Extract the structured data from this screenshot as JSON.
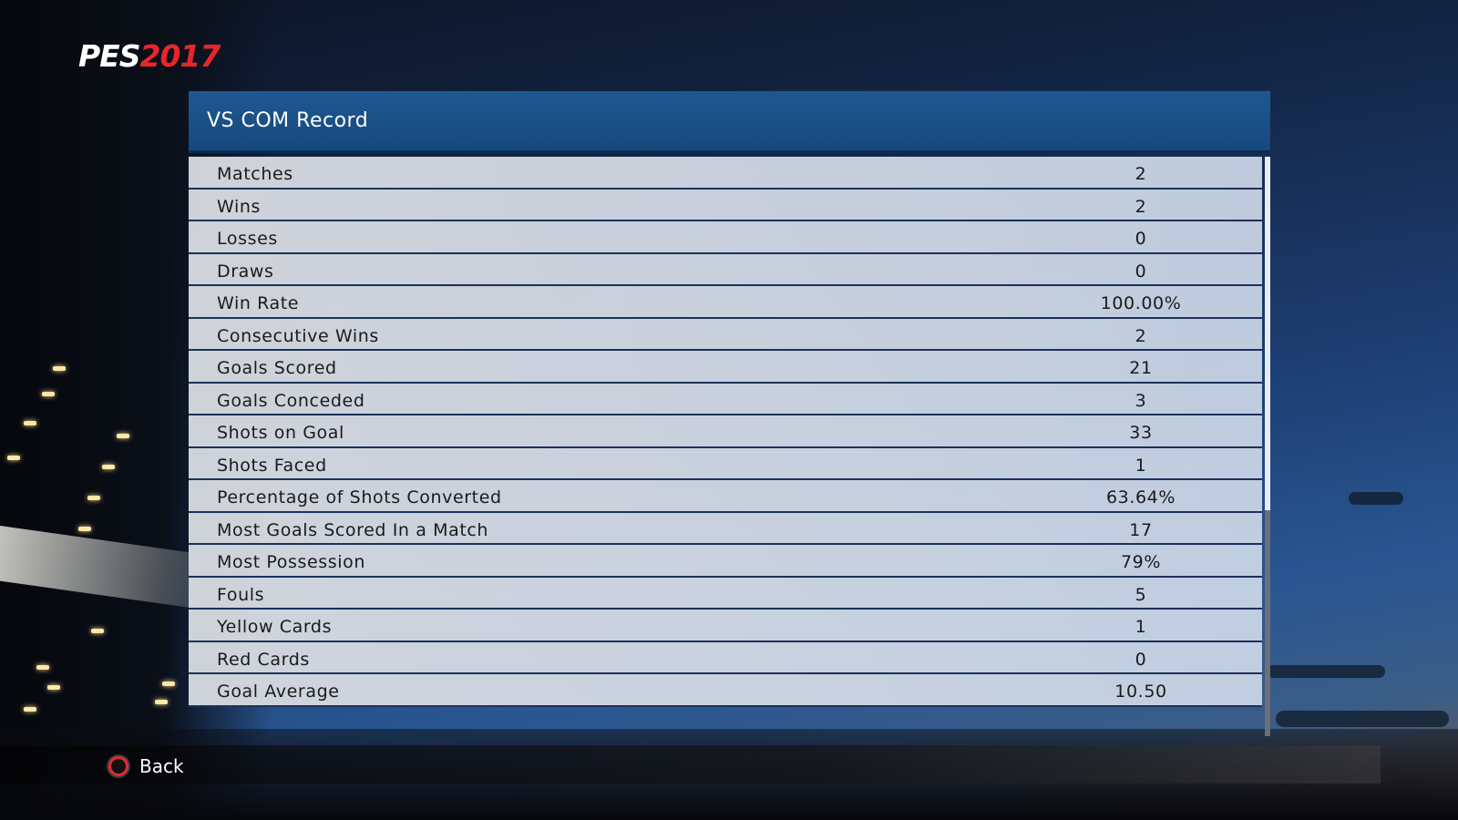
{
  "logo": {
    "part1": "PES",
    "part2": "2017"
  },
  "panel": {
    "title": "VS COM Record"
  },
  "stats": [
    {
      "label": "Matches",
      "value": "2"
    },
    {
      "label": "Wins",
      "value": "2"
    },
    {
      "label": "Losses",
      "value": "0"
    },
    {
      "label": "Draws",
      "value": "0"
    },
    {
      "label": "Win Rate",
      "value": "100.00%"
    },
    {
      "label": "Consecutive Wins",
      "value": "2"
    },
    {
      "label": "Goals Scored",
      "value": "21"
    },
    {
      "label": "Goals Conceded",
      "value": "3"
    },
    {
      "label": "Shots on Goal",
      "value": "33"
    },
    {
      "label": "Shots Faced",
      "value": "1"
    },
    {
      "label": "Percentage of Shots Converted",
      "value": "63.64%"
    },
    {
      "label": "Most Goals Scored In a Match",
      "value": "17"
    },
    {
      "label": "Most Possession",
      "value": "79%"
    },
    {
      "label": "Fouls",
      "value": "5"
    },
    {
      "label": "Yellow Cards",
      "value": "1"
    },
    {
      "label": "Red Cards",
      "value": "0"
    },
    {
      "label": "Goal Average",
      "value": "10.50"
    }
  ],
  "scroll": {
    "position": 0.0,
    "visible_fraction": 0.61
  },
  "footer": {
    "back_label": "Back",
    "back_icon": "circle-button-icon"
  },
  "colors": {
    "header_blue": "#1a5188",
    "logo_red": "#e8262a",
    "circle_button": "#e02a3a"
  }
}
